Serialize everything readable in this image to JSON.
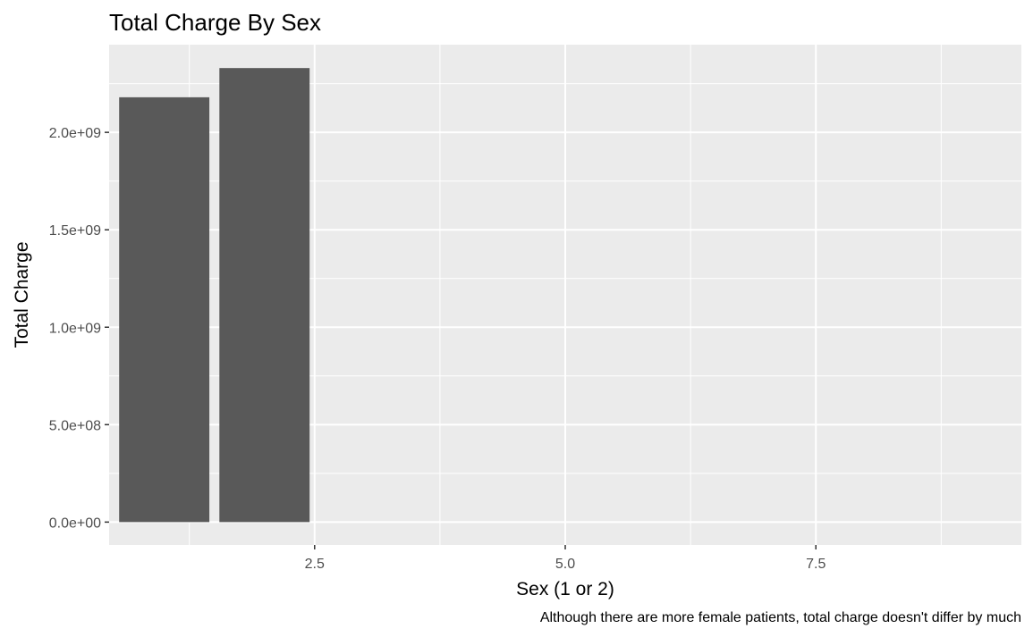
{
  "chart_data": {
    "type": "bar",
    "title": "Total Charge By Sex",
    "xlabel": "Sex (1 or 2)",
    "ylabel": "Total Charge",
    "caption": "Although there are more female patients, total charge doesn't differ by much",
    "bars": [
      {
        "x": 1,
        "value": 2180000000
      },
      {
        "x": 2,
        "value": 2330000000
      }
    ],
    "xlim": [
      0.45,
      9.55
    ],
    "ylim": [
      -117500000,
      2450000000
    ],
    "x_ticks": [
      {
        "value": 2.5,
        "label": "2.5"
      },
      {
        "value": 5.0,
        "label": "5.0"
      },
      {
        "value": 7.5,
        "label": "7.5"
      }
    ],
    "x_minor_ticks": [
      1.25,
      3.75,
      6.25,
      8.75
    ],
    "y_ticks": [
      {
        "value": 0,
        "label": "0.0e+00"
      },
      {
        "value": 500000000,
        "label": "5.0e+08"
      },
      {
        "value": 1000000000,
        "label": "1.0e+09"
      },
      {
        "value": 1500000000,
        "label": "1.5e+09"
      },
      {
        "value": 2000000000,
        "label": "2.0e+09"
      }
    ],
    "y_minor_ticks": [
      250000000,
      750000000,
      1250000000,
      1750000000,
      2250000000
    ],
    "grid": true,
    "legend": "none",
    "colors": {
      "bar": "#595959",
      "panel": "#ebebeb",
      "grid": "#ffffff",
      "tick": "#333333"
    }
  }
}
